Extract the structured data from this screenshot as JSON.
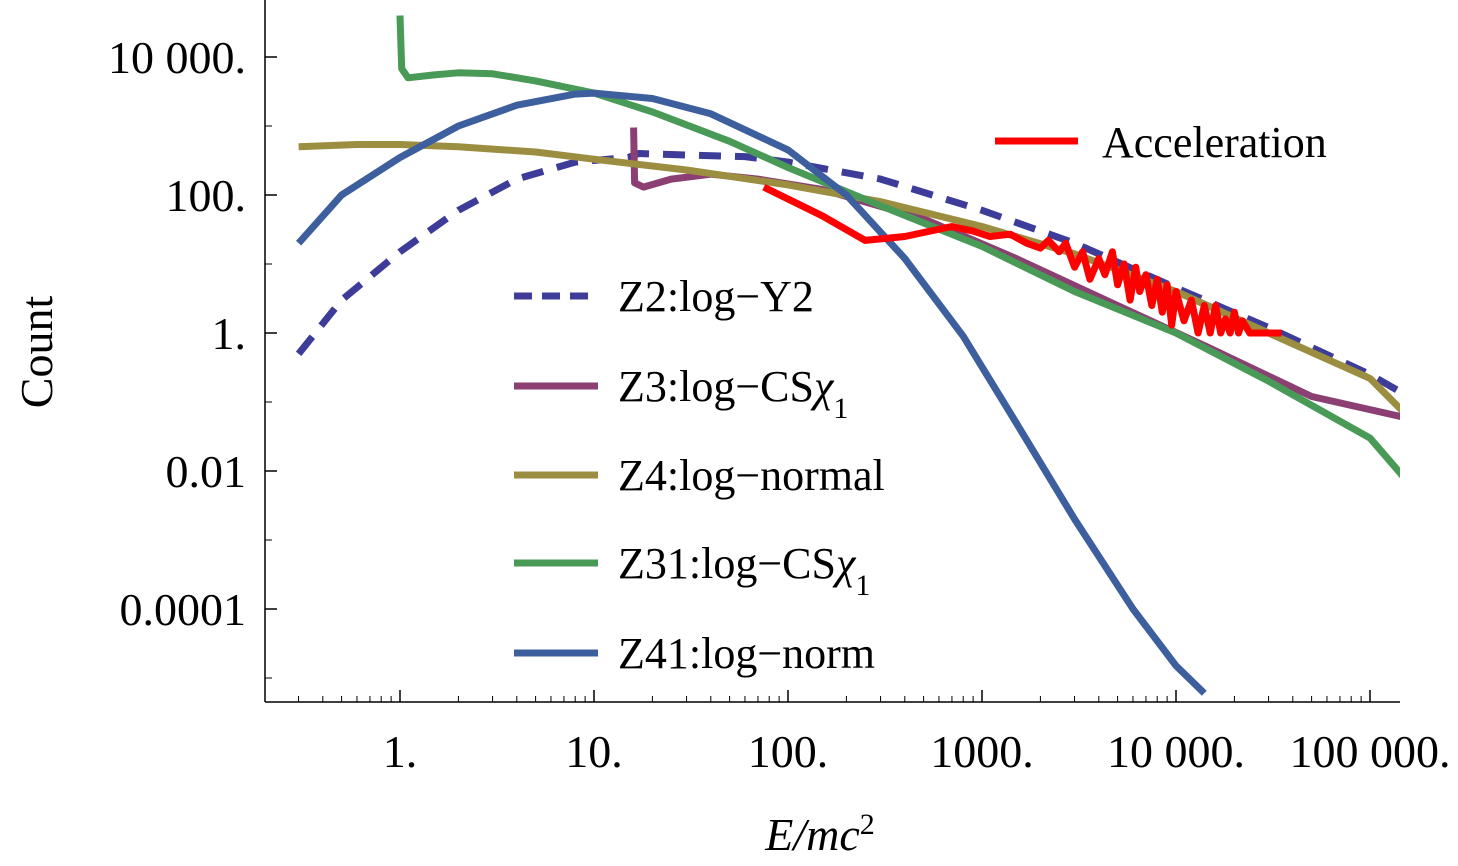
{
  "chart_data": {
    "type": "line",
    "title": "",
    "xlabel_parts": {
      "italic": "E/mc",
      "sup": "2"
    },
    "ylabel": "Count",
    "xscale": "log",
    "yscale": "log",
    "xlim": [
      0.22,
      250000
    ],
    "ylim": [
      5e-06,
      50000
    ],
    "x_ticks": [
      {
        "value": 1,
        "label": "1."
      },
      {
        "value": 10,
        "label": "10."
      },
      {
        "value": 100,
        "label": "100."
      },
      {
        "value": 1000,
        "label": "1000."
      },
      {
        "value": 10000,
        "label": "10 000."
      },
      {
        "value": 100000,
        "label": "100 000."
      }
    ],
    "y_ticks": [
      {
        "value": 10000,
        "label": "10 000."
      },
      {
        "value": 100,
        "label": "100."
      },
      {
        "value": 1,
        "label": "1."
      },
      {
        "value": 0.01,
        "label": "0.01"
      },
      {
        "value": 0.0001,
        "label": "0.0001"
      }
    ],
    "legend_location": "center",
    "series": [
      {
        "name": "Z2:log−Y2",
        "label_main": "Z2:log−Y2",
        "label_sym": "",
        "label_sub": "",
        "color": "#3d3d99",
        "dashed": true,
        "points": [
          [
            0.3,
            0.5
          ],
          [
            0.5,
            3
          ],
          [
            1,
            15
          ],
          [
            2,
            60
          ],
          [
            4,
            170
          ],
          [
            8,
            300
          ],
          [
            15,
            350
          ],
          [
            17,
            400
          ],
          [
            30,
            380
          ],
          [
            60,
            360
          ],
          [
            100,
            300
          ],
          [
            300,
            170
          ],
          [
            1000,
            60
          ],
          [
            3000,
            20
          ],
          [
            10000,
            4.5
          ],
          [
            30000,
            1.2
          ],
          [
            100000,
            0.25
          ],
          [
            150000,
            0.13
          ]
        ]
      },
      {
        "name": "Z3:log−CSχ1",
        "label_main": "Z3:log−CS",
        "label_sym": "χ",
        "label_sub": "1",
        "color": "#8b3f72",
        "dashed": false,
        "points": [
          [
            16,
            950
          ],
          [
            16.2,
            150
          ],
          [
            18,
            130
          ],
          [
            25,
            170
          ],
          [
            40,
            200
          ],
          [
            70,
            170
          ],
          [
            150,
            120
          ],
          [
            500,
            45
          ],
          [
            1500,
            12
          ],
          [
            5000,
            2.5
          ],
          [
            15000,
            0.6
          ],
          [
            50000,
            0.12
          ],
          [
            150000,
            0.06
          ]
        ]
      },
      {
        "name": "Z4:log−normal",
        "label_main": "Z4:log−normal",
        "label_sym": "",
        "label_sub": "",
        "color": "#9b8e40",
        "dashed": false,
        "points": [
          [
            0.3,
            500
          ],
          [
            0.6,
            540
          ],
          [
            1,
            540
          ],
          [
            2,
            500
          ],
          [
            5,
            420
          ],
          [
            10,
            330
          ],
          [
            30,
            230
          ],
          [
            100,
            140
          ],
          [
            300,
            80
          ],
          [
            1000,
            35
          ],
          [
            3000,
            14
          ],
          [
            10000,
            4
          ],
          [
            30000,
            1
          ],
          [
            100000,
            0.22
          ],
          [
            150000,
            0.07
          ]
        ]
      },
      {
        "name": "Z31:log−CSχ1",
        "label_main": "Z31:log−CS",
        "label_sym": "χ",
        "label_sub": "1",
        "color": "#4a9a57",
        "dashed": false,
        "points": [
          [
            1,
            40000
          ],
          [
            1.02,
            6800
          ],
          [
            1.1,
            5000
          ],
          [
            1.5,
            5500
          ],
          [
            2,
            5900
          ],
          [
            3,
            5700
          ],
          [
            5,
            4500
          ],
          [
            10,
            3000
          ],
          [
            20,
            1600
          ],
          [
            50,
            600
          ],
          [
            100,
            250
          ],
          [
            300,
            70
          ],
          [
            1000,
            18
          ],
          [
            3000,
            4
          ],
          [
            10000,
            1
          ],
          [
            30000,
            0.2
          ],
          [
            100000,
            0.03
          ],
          [
            150000,
            0.008
          ]
        ]
      },
      {
        "name": "Z41:log−norm",
        "label_main": "Z41:log−norm",
        "label_sym": "",
        "label_sub": "",
        "color": "#3d5f9e",
        "dashed": false,
        "points": [
          [
            0.3,
            20
          ],
          [
            0.5,
            100
          ],
          [
            1,
            350
          ],
          [
            2,
            1000
          ],
          [
            4,
            2000
          ],
          [
            8,
            2900
          ],
          [
            10,
            3000
          ],
          [
            20,
            2500
          ],
          [
            40,
            1500
          ],
          [
            100,
            450
          ],
          [
            200,
            100
          ],
          [
            400,
            12
          ],
          [
            800,
            0.9
          ],
          [
            1500,
            0.05
          ],
          [
            3000,
            0.002
          ],
          [
            6000,
            0.0001
          ],
          [
            10000,
            1.5e-05
          ],
          [
            14000,
            6e-06
          ]
        ]
      },
      {
        "name": "Acceleration",
        "label_main": "Acceleration",
        "label_sym": "",
        "label_sub": "",
        "color": "#ff0000",
        "dashed": false,
        "points": [
          [
            75,
            130
          ],
          [
            150,
            50
          ],
          [
            250,
            22
          ],
          [
            400,
            25
          ],
          [
            700,
            35
          ],
          [
            900,
            30
          ],
          [
            1100,
            25
          ],
          [
            1400,
            27
          ],
          [
            1700,
            20
          ],
          [
            2000,
            17
          ],
          [
            2200,
            22
          ],
          [
            2500,
            15
          ],
          [
            2700,
            20
          ],
          [
            3000,
            9
          ],
          [
            3300,
            15
          ],
          [
            3600,
            6
          ],
          [
            4000,
            12
          ],
          [
            4300,
            7
          ],
          [
            4700,
            15
          ],
          [
            5000,
            5
          ],
          [
            5400,
            10
          ],
          [
            5800,
            3
          ],
          [
            6200,
            9
          ],
          [
            6500,
            4
          ],
          [
            7000,
            7
          ],
          [
            7500,
            2.5
          ],
          [
            8000,
            6
          ],
          [
            8500,
            2
          ],
          [
            9000,
            5
          ],
          [
            9500,
            1.3
          ],
          [
            10000,
            4
          ],
          [
            11000,
            1.5
          ],
          [
            12000,
            3
          ],
          [
            13000,
            1
          ],
          [
            14000,
            2.5
          ],
          [
            15000,
            1
          ],
          [
            16000,
            2.5
          ],
          [
            17000,
            1
          ],
          [
            18000,
            1.6
          ],
          [
            19000,
            1
          ],
          [
            20000,
            2
          ],
          [
            21000,
            1
          ],
          [
            22000,
            1.5
          ],
          [
            24000,
            1
          ],
          [
            27000,
            1
          ],
          [
            35000,
            1
          ]
        ]
      }
    ]
  }
}
